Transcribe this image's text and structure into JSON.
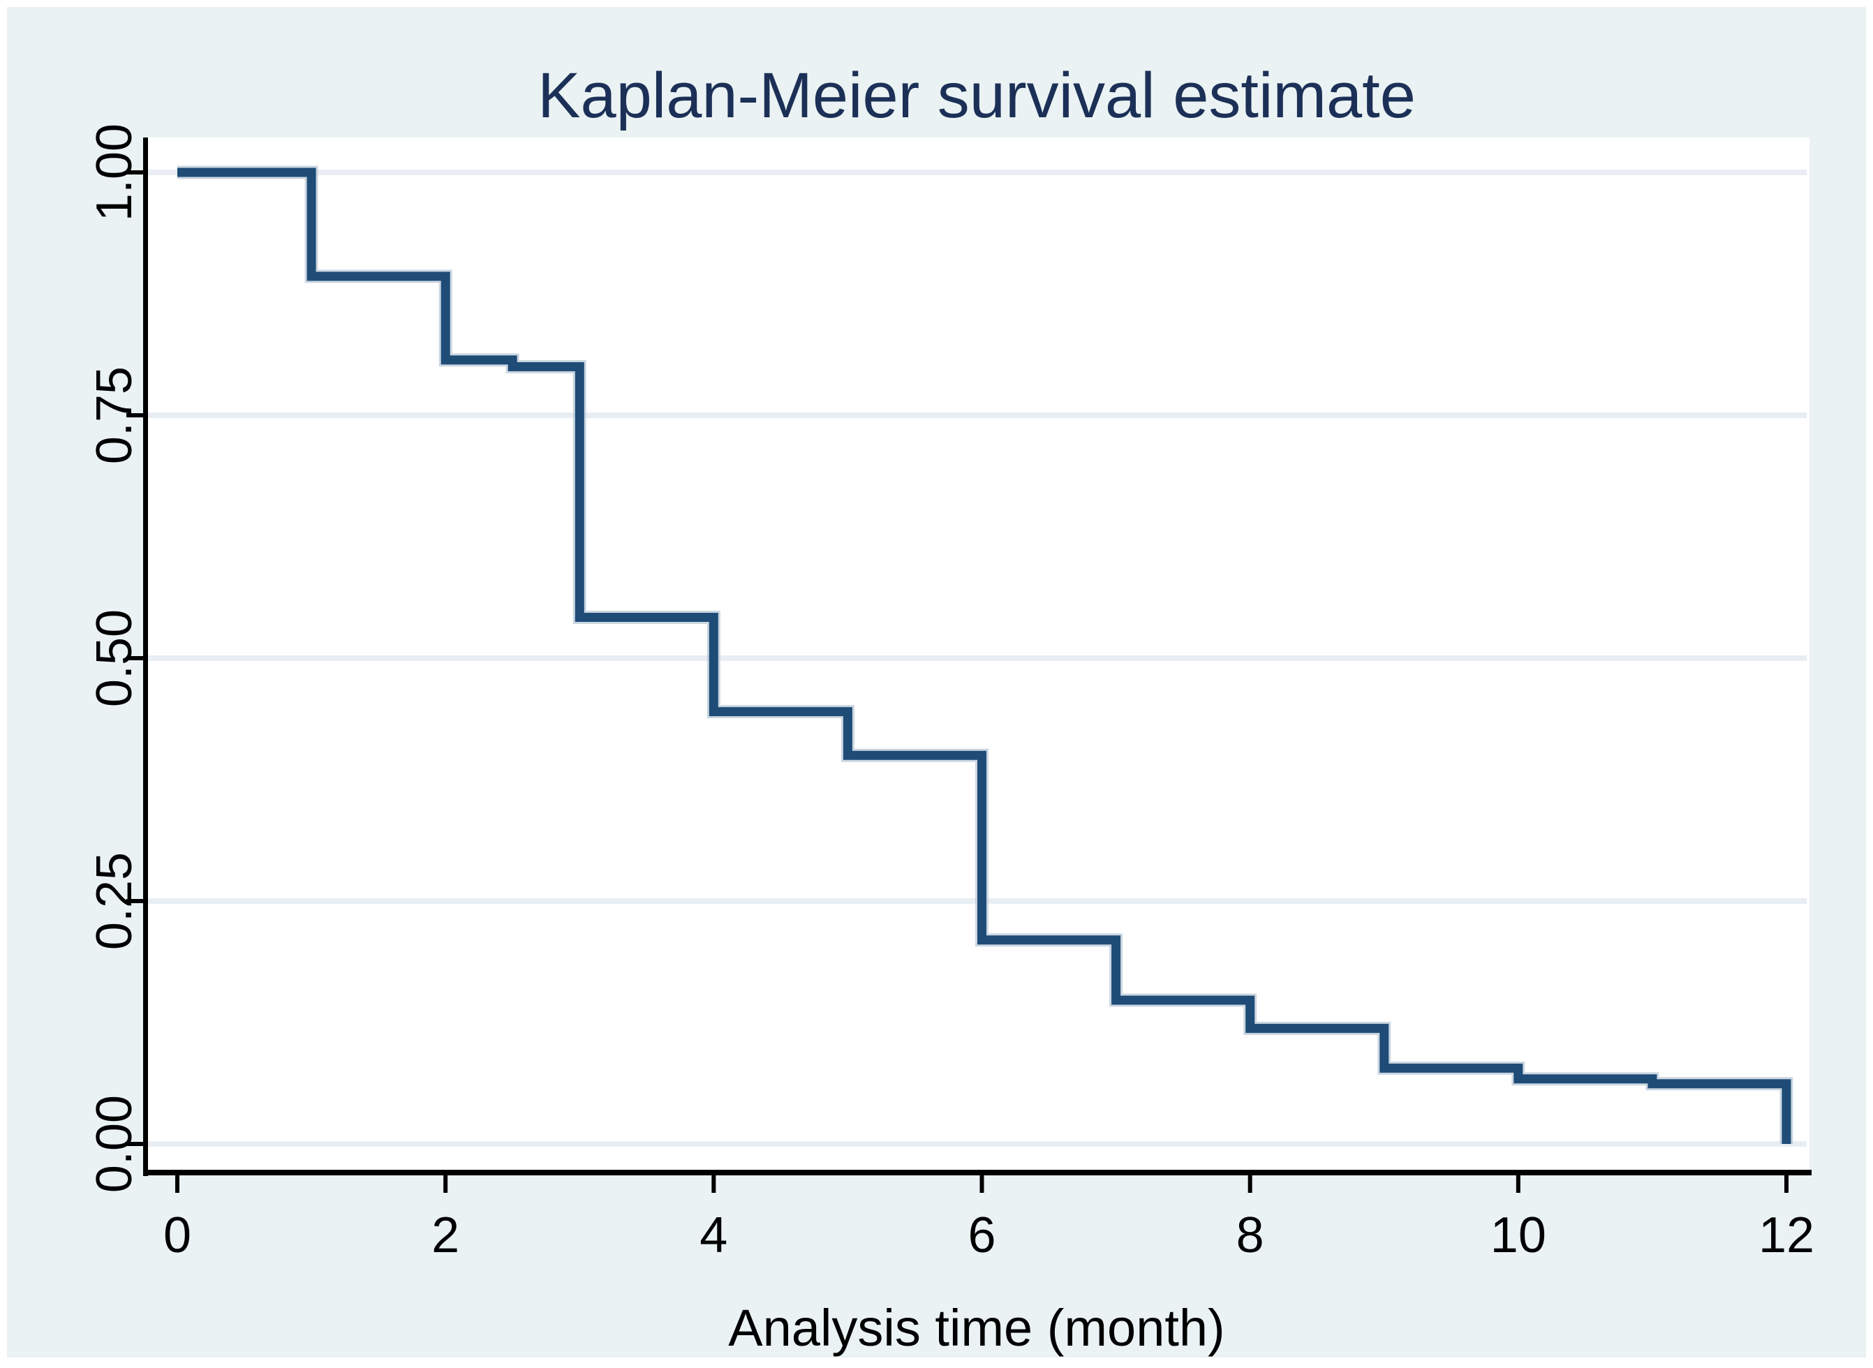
{
  "window": {
    "background": "#FFFFFF"
  },
  "chart_data": {
    "type": "line",
    "line_style": "step",
    "title": "Kaplan-Meier survival estimate",
    "xlabel": "Analysis time (month)",
    "ylabel": "",
    "xlim": [
      0,
      12
    ],
    "ylim": [
      0.0,
      1.0
    ],
    "x_tick_values": [
      0,
      2,
      4,
      6,
      8,
      10,
      12
    ],
    "x_tick_labels": [
      "0",
      "2",
      "4",
      "6",
      "8",
      "10",
      "12"
    ],
    "y_tick_values": [
      0,
      0.25,
      0.5,
      0.75,
      1
    ],
    "y_tick_labels": [
      "0.00",
      "0.25",
      "0.50",
      "0.75",
      "1.00"
    ],
    "grid": "horizontal",
    "legend": "none",
    "series": [
      {
        "name": "Kaplan-Meier survival estimate",
        "color": "#1E4C77",
        "points": [
          [
            0,
            1.0
          ],
          [
            1,
            1.0
          ],
          [
            1,
            0.893
          ],
          [
            2,
            0.893
          ],
          [
            2,
            0.807
          ],
          [
            2.5,
            0.807
          ],
          [
            2.5,
            0.8
          ],
          [
            3,
            0.8
          ],
          [
            3,
            0.542
          ],
          [
            4,
            0.542
          ],
          [
            4,
            0.445
          ],
          [
            5,
            0.445
          ],
          [
            5,
            0.4
          ],
          [
            6,
            0.4
          ],
          [
            6,
            0.21
          ],
          [
            7,
            0.21
          ],
          [
            7,
            0.148
          ],
          [
            8,
            0.148
          ],
          [
            8,
            0.119
          ],
          [
            9,
            0.119
          ],
          [
            9,
            0.078
          ],
          [
            10,
            0.078
          ],
          [
            10,
            0.067
          ],
          [
            11,
            0.067
          ],
          [
            11,
            0.062
          ],
          [
            12,
            0.062
          ],
          [
            12,
            0.0
          ]
        ]
      }
    ],
    "colors": {
      "plot_background": "#FFFFFF",
      "graph_background": "#EAF2F3",
      "gridline": "#E8EEF3",
      "axis": "#000000",
      "tick_label": "#000000",
      "title": "#1C3057",
      "line_halo": "#B7C6D6"
    }
  }
}
